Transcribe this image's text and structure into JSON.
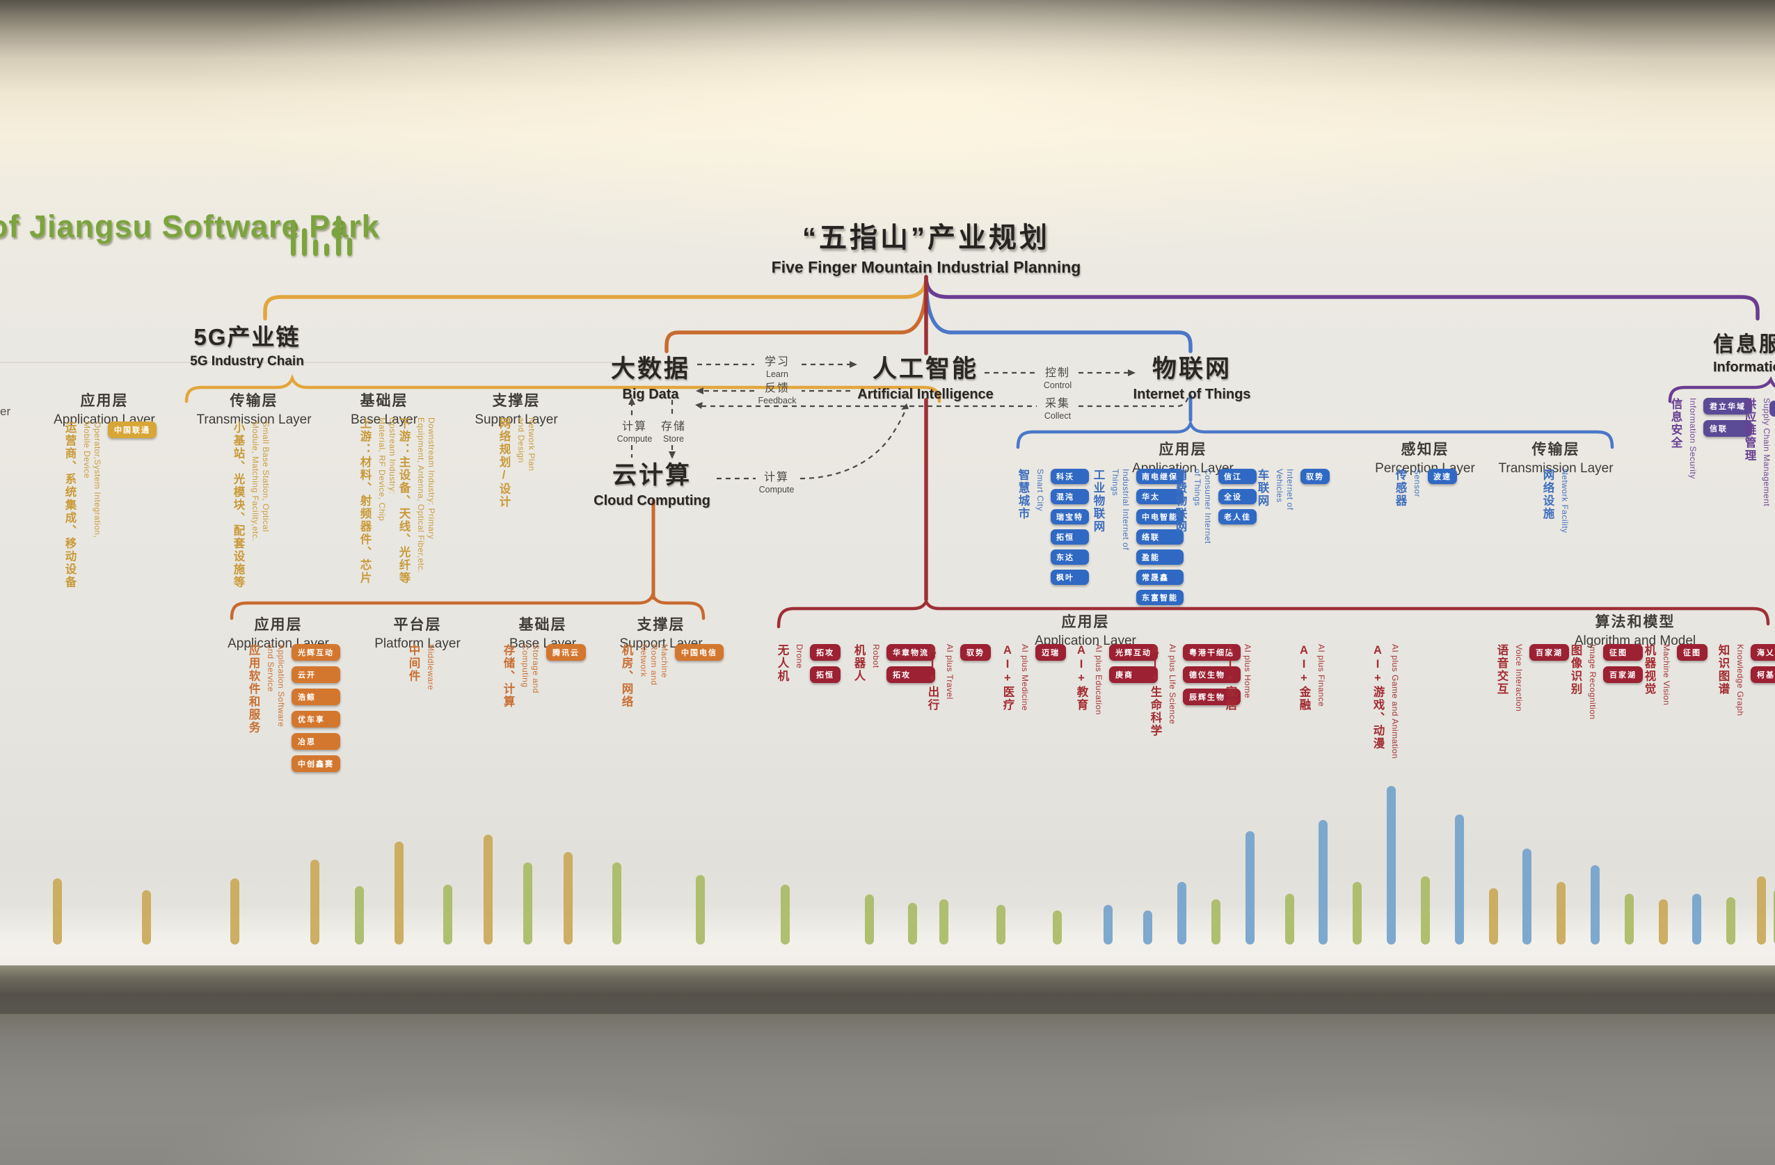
{
  "wall": {
    "park_sign": "of Jiangsu Software Park",
    "title_cn": "“五指山”产业规划",
    "title_en": "Five Finger Mountain Industrial Planning",
    "edge_fragment_left": "er"
  },
  "nodes": {
    "bigdata": {
      "cn": "大数据",
      "en": "Big Data"
    },
    "cloud": {
      "cn": "云计算",
      "en": "Cloud Computing"
    },
    "ai": {
      "cn": "人工智能",
      "en": "Artificial Intelligence"
    },
    "iot": {
      "cn": "物联网",
      "en": "Internet of Things"
    },
    "info": {
      "cn": "信息服务",
      "en": "Information"
    }
  },
  "flows": {
    "learn": {
      "cn": "学习",
      "en": "Learn"
    },
    "feedback": {
      "cn": "反馈",
      "en": "Feedback"
    },
    "compute_up": {
      "cn": "计算",
      "en": "Compute"
    },
    "store_down": {
      "cn": "存储",
      "en": "Store"
    },
    "compute_lateral": {
      "cn": "计算",
      "en": "Compute"
    },
    "control": {
      "cn": "控制",
      "en": "Control"
    },
    "collect": {
      "cn": "采集",
      "en": "Collect"
    }
  },
  "sections": {
    "g5": {
      "title_cn": "5G产业链",
      "title_en": "5G Industry Chain",
      "layers": [
        {
          "cn": "应用层",
          "en": "Application Layer"
        },
        {
          "cn": "传输层",
          "en": "Transmission Layer"
        },
        {
          "cn": "基础层",
          "en": "Base Layer"
        },
        {
          "cn": "支撑层",
          "en": "Support Layer"
        }
      ],
      "columns": [
        {
          "cn": "运营商、系统集成、移动设备",
          "en": "Operator,System Integration, Mobile Device",
          "tags": [
            "中国联通"
          ]
        },
        {
          "cn": "小基站、光模块、配套设施等",
          "en": "Small Base Station, Optical Module, Matching Facility,etc.",
          "tags": []
        },
        {
          "cn": "上游：材料、射频器件、芯片",
          "en": "Upstream Industry: Material, RF Device, Chip",
          "tags": []
        },
        {
          "cn": "下游：主设备、天线、光纤等",
          "en": "Downstream Industry: Primary Equipment, Antenna, Optical Fiber,etc.",
          "tags": []
        },
        {
          "cn": "网络规划/设计",
          "en": "Network Plan and Design",
          "tags": []
        }
      ]
    },
    "datacloud": {
      "layers": [
        {
          "cn": "应用层",
          "en": "Application Layer"
        },
        {
          "cn": "平台层",
          "en": "Platform Layer"
        },
        {
          "cn": "基础层",
          "en": "Base Layer"
        },
        {
          "cn": "支撑层",
          "en": "Support Layer"
        }
      ],
      "columns": [
        {
          "cn": "应用软件和服务",
          "en": "Application Software and Service",
          "tags": [
            "光辉互动",
            "云开",
            "浩鲸",
            "优车享",
            "冶思",
            "中创鑫赛"
          ]
        },
        {
          "cn": "中间件",
          "en": "Middleware",
          "tags": []
        },
        {
          "cn": "存储、计算",
          "en": "Storage and Computing",
          "tags": [
            "腾讯云"
          ]
        },
        {
          "cn": "机房、网络",
          "en": "Machine Room and Network",
          "tags": [
            "中国电信"
          ]
        }
      ]
    },
    "ai_app": {
      "layer_cn": "应用层",
      "layer_en": "Application Layer",
      "columns": [
        {
          "cn": "无人机",
          "en": "Drone",
          "tags": [
            "拓攻",
            "拓恒"
          ]
        },
        {
          "cn": "机器人",
          "en": "Robot",
          "tags": [
            "华章物流",
            "拓攻"
          ]
        },
        {
          "cn": "AI+出行",
          "en": "AI plus Travel",
          "tags": [
            "驭势"
          ]
        },
        {
          "cn": "AI+医疗",
          "en": "AI plus Medicine",
          "tags": [
            "迈瑞"
          ]
        },
        {
          "cn": "AI+教育",
          "en": "AI plus Education",
          "tags": [
            "光辉互动",
            "庚商"
          ]
        },
        {
          "cn": "AI+生命科学",
          "en": "AI plus Life Science",
          "tags": [
            "粤港干细胞",
            "德仪生物",
            "辰辉生物"
          ]
        },
        {
          "cn": "AI+家居",
          "en": "AI plus Home",
          "tags": []
        },
        {
          "cn": "AI+金融",
          "en": "AI plus Finance",
          "tags": []
        },
        {
          "cn": "AI+游戏、动漫",
          "en": "AI plus Game and Animation",
          "tags": []
        }
      ]
    },
    "algorithm": {
      "title_cn": "算法和模型",
      "title_en": "Algorithm and Model",
      "columns": [
        {
          "cn": "语音交互",
          "en": "Voice Interaction",
          "tags": [
            "百家湖"
          ]
        },
        {
          "cn": "图像识别",
          "en": "Image Recognition",
          "tags": [
            "征图",
            "百家湖"
          ]
        },
        {
          "cn": "机器视觉",
          "en": "Machine Vision",
          "tags": [
            "征图"
          ]
        },
        {
          "cn": "知识图谱",
          "en": "Knowledge Graph",
          "tags": [
            "海乂知",
            "柯基"
          ]
        }
      ]
    },
    "iot": {
      "layers": [
        {
          "cn": "应用层",
          "en": "Application Layer"
        },
        {
          "cn": "感知层",
          "en": "Perception Layer"
        },
        {
          "cn": "传输层",
          "en": "Transmission Layer"
        }
      ],
      "columns": [
        {
          "cn": "智慧城市",
          "en": "Smart City",
          "tags": [
            "科沃",
            "混沌",
            "瑞宝特",
            "拓恒",
            "东达",
            "枫叶"
          ]
        },
        {
          "cn": "工业物联网",
          "en": "Industrial Internet of Things",
          "tags": [
            "南电继保",
            "华太",
            "中电智能",
            "络联",
            "盈能",
            "常晟鑫",
            "东富智能"
          ]
        },
        {
          "cn": "消费物联网",
          "en": "Consumer Internet of Things",
          "tags": [
            "信江",
            "全设",
            "老人佳"
          ]
        },
        {
          "cn": "车联网",
          "en": "Internet of Vehicles",
          "tags": [
            "驭势"
          ]
        },
        {
          "cn": "传感器",
          "en": "Sensor",
          "tags": [
            "波速"
          ]
        },
        {
          "cn": "网络设施",
          "en": "Network Facility",
          "tags": []
        }
      ]
    },
    "infoservice": {
      "columns": [
        {
          "cn": "信息安全",
          "en": "Information Security",
          "tags": [
            "君立华域",
            "信联"
          ]
        },
        {
          "cn": "供应链管理",
          "en": "Supply Chain Management",
          "tags": []
        }
      ]
    }
  },
  "colors": {
    "g5": "#c99a3a",
    "datacloud": "#c96f33",
    "ai": "#a32c32",
    "iot": "#3f6fbe",
    "info": "#6a4193",
    "sign_green": "#7ca43e",
    "bar_gold": "#c9a958",
    "bar_green": "#a9bb66",
    "bar_blue": "#74a3cc",
    "ink": "#292623",
    "flow_arrow": "#4b4845"
  }
}
